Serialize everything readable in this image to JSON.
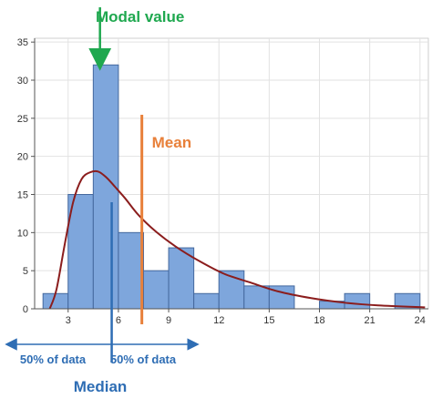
{
  "chart_data": {
    "type": "bar",
    "title": "",
    "xlabel": "",
    "ylabel": "",
    "bin_width": 1.5,
    "bins": [
      {
        "start": 1.5,
        "value": 2
      },
      {
        "start": 3.0,
        "value": 15
      },
      {
        "start": 4.5,
        "value": 32
      },
      {
        "start": 6.0,
        "value": 10
      },
      {
        "start": 7.5,
        "value": 5
      },
      {
        "start": 9.0,
        "value": 8
      },
      {
        "start": 10.5,
        "value": 2
      },
      {
        "start": 12.0,
        "value": 5
      },
      {
        "start": 13.5,
        "value": 3
      },
      {
        "start": 15.0,
        "value": 3
      },
      {
        "start": 16.5,
        "value": 0
      },
      {
        "start": 18.0,
        "value": 1
      },
      {
        "start": 19.5,
        "value": 2
      },
      {
        "start": 21.0,
        "value": 0
      },
      {
        "start": 22.5,
        "value": 2
      }
    ],
    "x_ticks": [
      3,
      6,
      9,
      12,
      15,
      18,
      21,
      24
    ],
    "y_ticks": [
      0,
      5,
      10,
      15,
      20,
      25,
      30,
      35
    ],
    "xlim": [
      1.0,
      24.5
    ],
    "ylim": [
      0,
      35.5
    ],
    "density_curve": {
      "x": [
        1.9,
        2.3,
        2.8,
        3.3,
        3.8,
        4.3,
        4.8,
        5.3,
        5.8,
        6.4,
        7.2,
        8.2,
        9.4,
        10.8,
        12.3,
        13.8,
        15.5,
        17.5,
        19.5,
        21.5,
        24.3
      ],
      "y": [
        0,
        2.5,
        8.5,
        14,
        17,
        17.9,
        18,
        17.2,
        16,
        14.5,
        12.3,
        10.2,
        8.2,
        6.3,
        4.6,
        3.5,
        2.3,
        1.4,
        0.8,
        0.45,
        0.2
      ]
    },
    "grid": true,
    "legend": "none",
    "colors": {
      "bar_fill": "#7ea6dc",
      "bar_stroke": "#44689e",
      "curve": "#8b1d1d",
      "grid": "#e2e2e2",
      "axis": "#555555",
      "modal": "#1fa84f",
      "mean": "#e8803a",
      "median": "#2e6db4"
    },
    "annotations": {
      "modal": {
        "label": "Modal value",
        "x": 4.9,
        "y": 32
      },
      "mean": {
        "label": "Mean",
        "x": 7.4
      },
      "median": {
        "label": "Median",
        "x": 5.6
      },
      "left_half": {
        "label": "50% of data"
      },
      "right_half": {
        "label": "50% of data"
      }
    }
  }
}
